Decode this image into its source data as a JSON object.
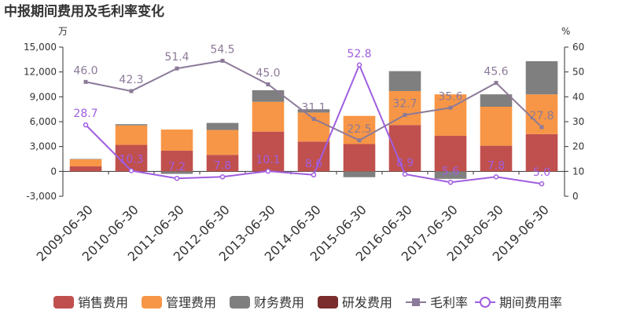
{
  "chart_data": {
    "type": "bar",
    "title": "中报期间费用及毛利率变化",
    "left_unit": "万",
    "right_unit": "%",
    "categories": [
      "2009-06-30",
      "2010-06-30",
      "2011-06-30",
      "2012-06-30",
      "2013-06-30",
      "2014-06-30",
      "2015-06-30",
      "2016-06-30",
      "2017-06-30",
      "2018-06-30",
      "2019-06-30"
    ],
    "y_left": {
      "min": -3000,
      "max": 15000,
      "ticks": [
        "-3,000",
        "0",
        "3,000",
        "6,000",
        "9,000",
        "12,000",
        "15,000"
      ]
    },
    "y_right": {
      "min": 0,
      "max": 60,
      "ticks": [
        "0",
        "10",
        "20",
        "30",
        "40",
        "50",
        "60"
      ]
    },
    "stacked": true,
    "grid": false,
    "legend_position": "bottom",
    "bar_series": [
      {
        "name": "销售费用",
        "color": "#c0504d",
        "values": [
          600,
          3200,
          2500,
          2000,
          4800,
          3600,
          3300,
          5600,
          4300,
          3100,
          4500
        ]
      },
      {
        "name": "管理费用",
        "color": "#f79646",
        "values": [
          850,
          2350,
          2550,
          3000,
          3600,
          3500,
          3400,
          4100,
          5000,
          4700,
          4800
        ]
      },
      {
        "name": "财务费用",
        "color": "#7f7f7f",
        "values": [
          50,
          150,
          -300,
          850,
          1400,
          400,
          -700,
          2400,
          -900,
          1500,
          4000
        ]
      },
      {
        "name": "研发费用",
        "color": "#7b2c2c",
        "values": [
          0,
          0,
          0,
          0,
          0,
          0,
          0,
          0,
          0,
          0,
          0
        ]
      }
    ],
    "line_series": [
      {
        "name": "毛利率",
        "color": "#8c7a99",
        "marker": "square",
        "values": [
          46.0,
          42.3,
          51.4,
          54.5,
          45.0,
          31.1,
          22.5,
          32.7,
          35.6,
          45.6,
          27.8
        ],
        "labels": [
          "46.0",
          "42.3",
          "51.4",
          "54.5",
          "45.0",
          "31.1",
          "22.5",
          "32.7",
          "35.6",
          "45.6",
          "27.8"
        ]
      },
      {
        "name": "期间费用率",
        "color": "#a05ee0",
        "marker": "circle",
        "values": [
          28.7,
          10.3,
          7.2,
          7.8,
          10.1,
          8.6,
          52.8,
          8.9,
          5.6,
          7.8,
          5.0
        ],
        "labels": [
          "28.7",
          "10.3",
          "7.2",
          "7.8",
          "10.1",
          "8.6",
          "52.8",
          "8.9",
          "5.6",
          "7.8",
          "5.0"
        ]
      }
    ]
  }
}
